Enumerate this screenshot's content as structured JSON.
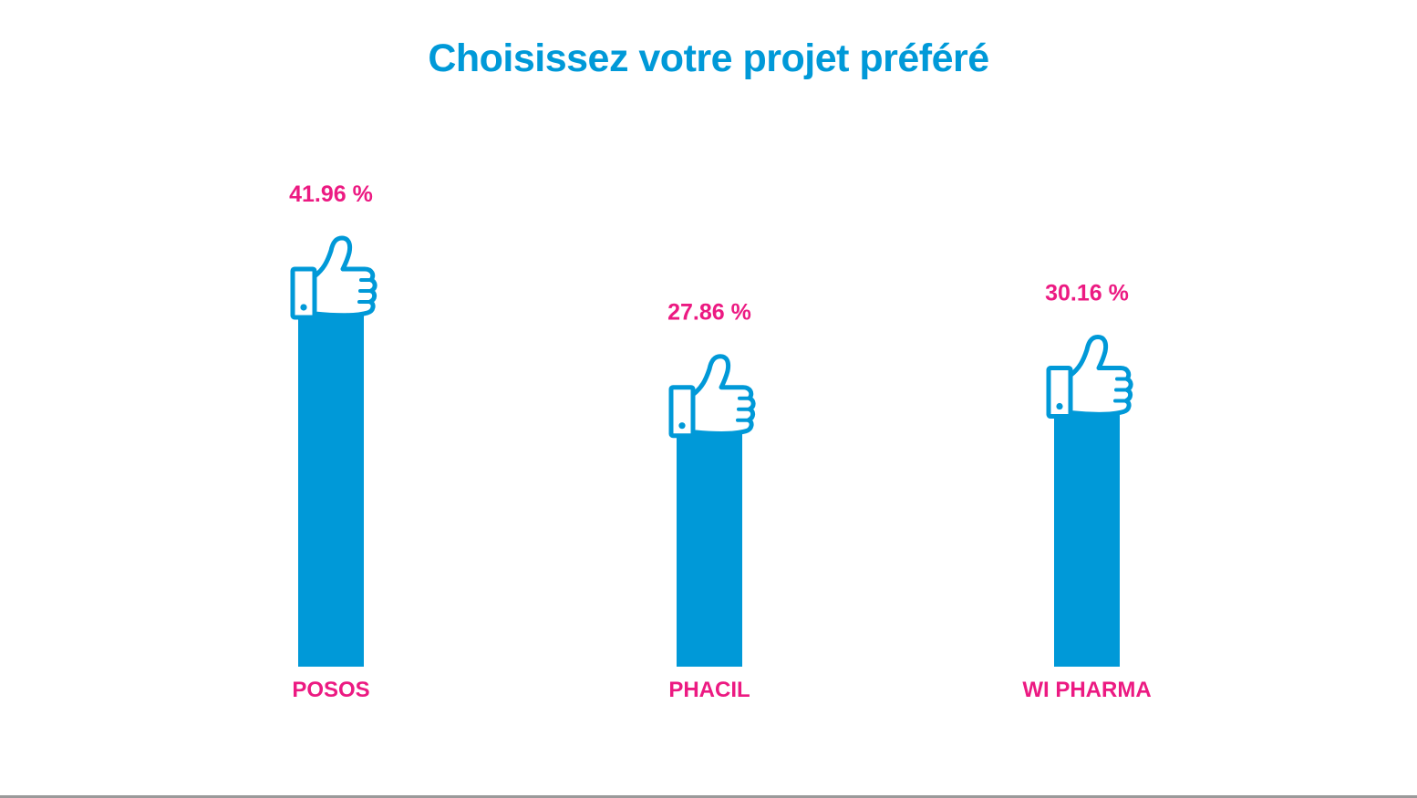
{
  "chart_data": {
    "type": "bar",
    "title": "Choisissez votre projet préféré",
    "categories": [
      "POSOS",
      "PHACIL",
      "WI PHARMA"
    ],
    "values": [
      41.96,
      27.86,
      30.16
    ],
    "value_labels": [
      "41.96 %",
      "27.86 %",
      "30.16 %"
    ],
    "ylim": [
      0,
      45
    ],
    "grid": false,
    "legend": "none",
    "bar_color": "#0099d8",
    "label_color": "#ec1a82",
    "icon": "thumbs-up-icon"
  }
}
